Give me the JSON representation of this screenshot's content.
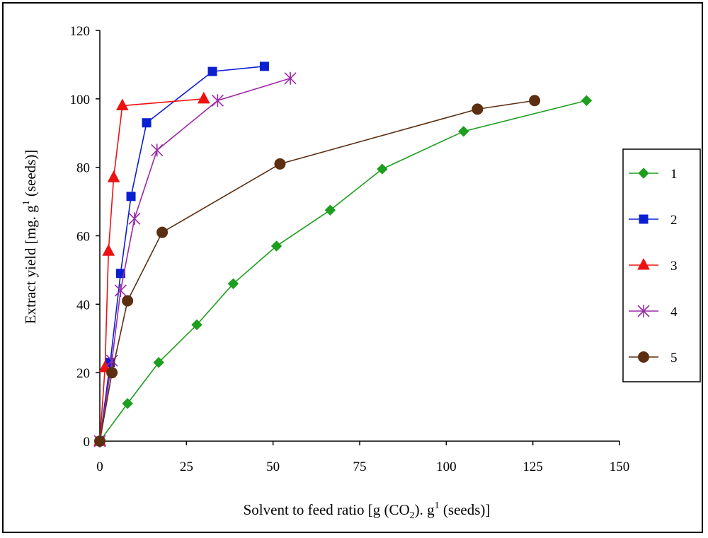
{
  "chart_data": {
    "type": "line",
    "title": "",
    "xlabel": "Solvent to feed ratio [g (CO",
    "xlabel_sub": "2",
    "xlabel_tail": "). g",
    "xlabel_sup": "1",
    "xlabel_end": " (seeds)]",
    "ylabel": "Extract yield [mg. g",
    "ylabel_sup": "1",
    "ylabel_end": " (seeds)]",
    "xlim": [
      0,
      150
    ],
    "ylim": [
      0,
      120
    ],
    "xticks": [
      0,
      25,
      50,
      75,
      100,
      125,
      150
    ],
    "xtick_labels": [
      "0",
      "25",
      "50",
      "75",
      "100",
      "125",
      "150"
    ],
    "yticks": [
      0,
      20,
      40,
      60,
      80,
      100,
      120
    ],
    "ytick_labels": [
      "0",
      "20",
      "40",
      "60",
      "80",
      "100",
      "120"
    ],
    "legend_position": "right",
    "grid": false,
    "series": [
      {
        "name": "1",
        "color": "#1e9e1e",
        "marker": "diamond",
        "x": [
          0,
          8,
          17,
          28,
          38.5,
          51,
          66.5,
          81.5,
          105,
          140.5
        ],
        "y": [
          0,
          11,
          23,
          34,
          46,
          57,
          67.5,
          79.5,
          90.5,
          99.5
        ]
      },
      {
        "name": "2",
        "color": "#0a1fd0",
        "marker": "square",
        "x": [
          0,
          3,
          6,
          9,
          13.5,
          32.5,
          47.5
        ],
        "y": [
          0,
          23,
          49,
          71.5,
          93,
          108,
          109.5
        ]
      },
      {
        "name": "3",
        "color": "#ee1111",
        "marker": "triangle",
        "x": [
          0,
          1.5,
          2.5,
          4,
          6.5,
          30
        ],
        "y": [
          0,
          21.5,
          55.5,
          77,
          98,
          100
        ]
      },
      {
        "name": "4",
        "color": "#9a2aa8",
        "marker": "asterisk",
        "x": [
          0,
          3.5,
          6,
          10,
          16.5,
          34,
          55
        ],
        "y": [
          0,
          23.5,
          44,
          65,
          85,
          99.5,
          106
        ]
      },
      {
        "name": "5",
        "color": "#5c2e12",
        "marker": "circle",
        "x": [
          0,
          3.5,
          8,
          18,
          52,
          109,
          125.5
        ],
        "y": [
          0,
          20,
          41,
          61,
          81,
          97,
          99.5
        ]
      }
    ]
  }
}
